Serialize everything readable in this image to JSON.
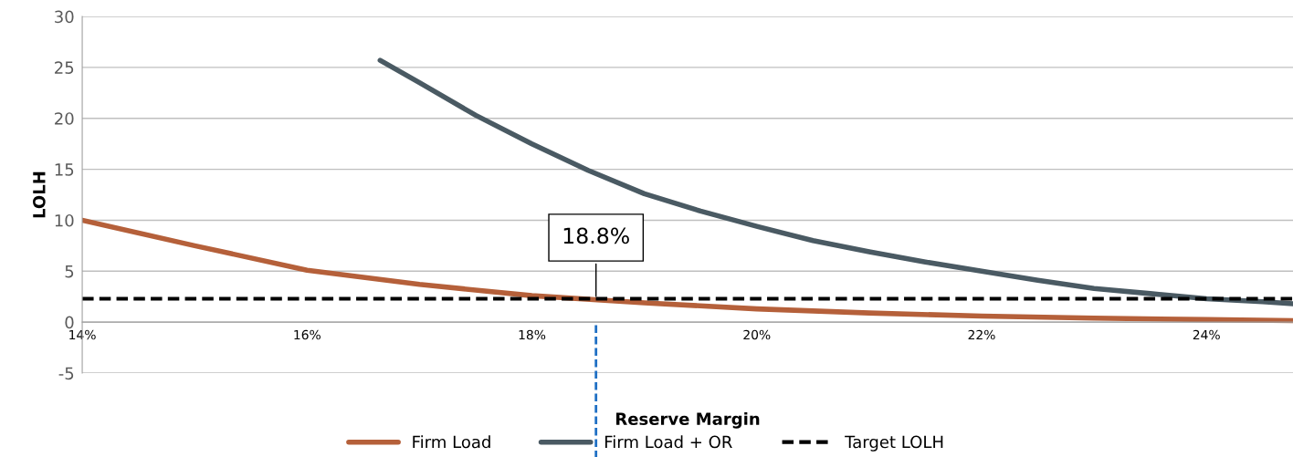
{
  "chart_data": {
    "type": "line",
    "xlabel": "Reserve Margin",
    "ylabel": "LOLH",
    "xlim": [
      14,
      24.77
    ],
    "xticks": [
      {
        "value": 14,
        "label": "14%"
      },
      {
        "value": 16,
        "label": "16%"
      },
      {
        "value": 18,
        "label": "18%"
      },
      {
        "value": 20,
        "label": "20%"
      },
      {
        "value": 22,
        "label": "22%"
      },
      {
        "value": 24,
        "label": "24%"
      }
    ],
    "ylim": [
      -5,
      30
    ],
    "yticks": [
      -5,
      0,
      5,
      10,
      15,
      20,
      25,
      30
    ],
    "grid": "y",
    "legend": "bottom",
    "series": [
      {
        "name": "Firm Load",
        "color": "#b5603a",
        "line_style": "solid",
        "x": [
          14,
          15,
          16,
          17,
          18,
          19,
          20,
          21,
          22,
          23,
          24,
          24.77
        ],
        "values": [
          10,
          7.5,
          5.1,
          3.7,
          2.6,
          1.9,
          1.3,
          0.9,
          0.6,
          0.4,
          0.25,
          0.15
        ]
      },
      {
        "name": "Firm Load + OR",
        "color": "#4a5a63",
        "line_style": "solid",
        "x": [
          16.65,
          17,
          17.5,
          18,
          18.5,
          19,
          19.5,
          20,
          20.5,
          21,
          21.5,
          22,
          22.5,
          23,
          23.5,
          24,
          24.5,
          24.77
        ],
        "values": [
          25.7,
          23.5,
          20.3,
          17.5,
          14.9,
          12.6,
          10.9,
          9.4,
          8,
          6.9,
          5.9,
          5,
          4.1,
          3.3,
          2.8,
          2.3,
          2.0,
          1.8
        ]
      },
      {
        "name": "Target LOLH",
        "color": "#000000",
        "line_style": "dashed",
        "x": [
          14,
          24.77
        ],
        "values": [
          2.3,
          2.3
        ]
      }
    ],
    "ref_lines": [
      {
        "axis": "x",
        "value": 18.57,
        "color": "#1f6fc4",
        "line_style": "dashed"
      }
    ],
    "annotations": [
      {
        "text": "18.8%",
        "x": 18.57,
        "y": 2.3
      }
    ]
  }
}
